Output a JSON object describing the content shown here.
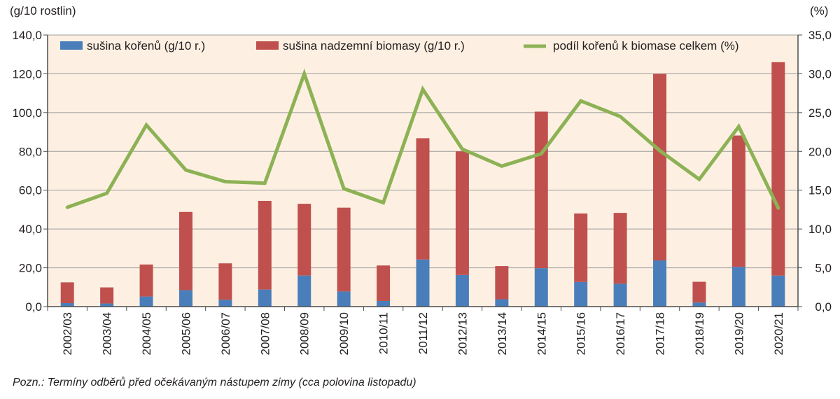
{
  "chart_data": {
    "type": "bar+line",
    "categories": [
      "2002/03",
      "2003/04",
      "2004/05",
      "2005/06",
      "2006/07",
      "2007/08",
      "2008/09",
      "2009/10",
      "2010/11",
      "2011/12",
      "2012/13",
      "2013/14",
      "2014/15",
      "2015/16",
      "2016/17",
      "2017/18",
      "2018/19",
      "2019/20",
      "2020/21"
    ],
    "series": [
      {
        "name": "sušina kořenů (g/10 r.)",
        "kind": "stacked-bar",
        "axis": "left",
        "color": "#4a7ebb",
        "values": [
          1.8,
          1.6,
          5.2,
          8.5,
          3.5,
          8.8,
          16.0,
          7.8,
          2.9,
          24.3,
          16.3,
          3.8,
          19.8,
          12.7,
          11.8,
          23.8,
          2.1,
          20.5,
          16.0
        ]
      },
      {
        "name": "sušina nadzemní biomasy (g/10 r.)",
        "kind": "stacked-bar",
        "axis": "left",
        "color": "#c0504d",
        "values": [
          10.7,
          8.3,
          16.5,
          40.3,
          18.8,
          45.7,
          37.0,
          43.2,
          18.3,
          62.5,
          63.7,
          17.1,
          80.7,
          35.3,
          36.5,
          96.2,
          10.7,
          67.7,
          110.0
        ]
      },
      {
        "name": "podíl kořenů k biomase celkem (%)",
        "kind": "line",
        "axis": "right",
        "color": "#8db255",
        "values": [
          12.8,
          14.6,
          23.4,
          17.6,
          16.1,
          15.9,
          30.0,
          15.2,
          13.4,
          28.0,
          20.3,
          18.1,
          19.7,
          26.5,
          24.5,
          20.1,
          16.4,
          23.2,
          12.7
        ]
      }
    ],
    "left_axis": {
      "label": "(g/10 rostlin)",
      "min": 0,
      "max": 140,
      "ticks": [
        "0,0",
        "20,0",
        "40,0",
        "60,0",
        "80,0",
        "100,0",
        "120,0",
        "140,0"
      ]
    },
    "right_axis": {
      "label": "(%)",
      "min": 0,
      "max": 35,
      "ticks": [
        "0,0",
        "5,0",
        "10,0",
        "15,0",
        "20,0",
        "25,0",
        "30,0",
        "35,0"
      ]
    },
    "gridlines": true,
    "legend_position": "top",
    "note": "Pozn.: Termíny odběrů před očekávaným nástupem zimy (cca polovina listopadu)"
  },
  "colors": {
    "plot_background": "#fdf0e2",
    "grid": "#9d9d9d",
    "axis": "#4d4d4d"
  }
}
